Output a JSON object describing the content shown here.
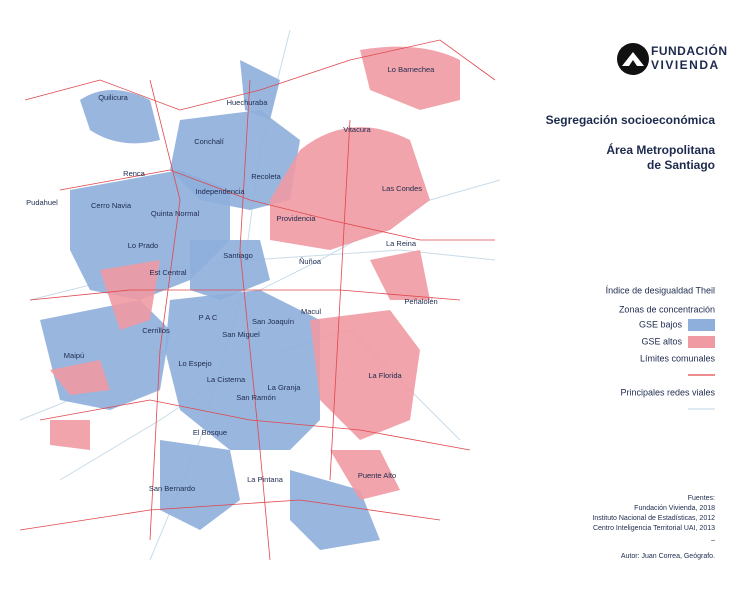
{
  "logo": {
    "line1": "FUNDACIÓN",
    "line2": "VIVIENDA"
  },
  "title": "Segregación socioeconómica",
  "subtitle": [
    "Área Metropolitana",
    "de Santiago"
  ],
  "legend": {
    "title": "Índice de desigualdad Theil",
    "subtitle": "Zonas de concentración",
    "items": [
      {
        "label": "GSE bajos",
        "color": "#8eaedb"
      },
      {
        "label": "GSE altos",
        "color": "#f09aa3"
      }
    ],
    "lines": [
      {
        "label": "Límites comunales",
        "color": "#e0474c"
      },
      {
        "label": "Principales redes viales",
        "color": "#c9dce9"
      }
    ]
  },
  "sources": {
    "heading": "Fuentes:",
    "items": [
      "Fundación Vivienda, 2018",
      "Instituto Nacional de Estadísticas, 2012",
      "Centro Inteligencia Territorial UAI, 2013"
    ],
    "separator": "–"
  },
  "author": "Autor: Juan Correa, Geógrafo.",
  "map": {
    "communes": [
      "Quilicura",
      "Huechuraba",
      "Lo Barnechea",
      "Vitacura",
      "Conchalí",
      "Recoleta",
      "Renca",
      "Independencia",
      "Las Condes",
      "Pudahuel",
      "Cerro Navia",
      "Quinta Normal",
      "Providencia",
      "Lo Prado",
      "La Reina",
      "Santiago",
      "Ñuñoa",
      "Est Central",
      "Peñalolén",
      "P A C",
      "San Joaquín",
      "Macul",
      "Cerrillos",
      "San Miguel",
      "Maipú",
      "Lo Espejo",
      "La Florida",
      "La Cisterna",
      "La Granja",
      "San Ramón",
      "El Bosque",
      "Puente Alto",
      "La Pintana",
      "San Bernardo"
    ]
  }
}
